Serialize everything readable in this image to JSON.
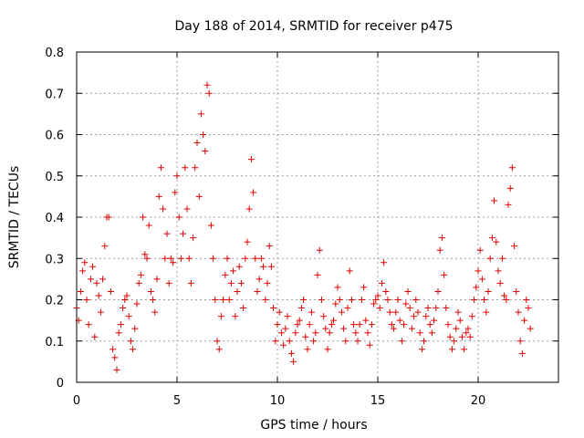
{
  "chart_data": {
    "type": "scatter",
    "title": "Day 188 of 2014, SRMTID for receiver p475",
    "xlabel": "GPS time / hours",
    "ylabel": "SRMTID / TECUs",
    "xlim": [
      0,
      24
    ],
    "ylim": [
      0,
      0.8
    ],
    "grid": true,
    "marker": "+",
    "series_color": "#e00000",
    "x_ticks": [
      0,
      5,
      10,
      15,
      20
    ],
    "x_tick_labels": [
      "0",
      "5",
      "10",
      "15",
      "20"
    ],
    "y_ticks": [
      0,
      0.1,
      0.2,
      0.3,
      0.4,
      0.5,
      0.6,
      0.7,
      0.8
    ],
    "y_tick_labels": [
      "0",
      "0.1",
      "0.2",
      "0.3",
      "0.4",
      "0.5",
      "0.6",
      "0.7",
      "0.8"
    ],
    "series": [
      {
        "name": "p475",
        "points": [
          [
            0.0,
            0.18
          ],
          [
            0.1,
            0.15
          ],
          [
            0.2,
            0.22
          ],
          [
            0.3,
            0.27
          ],
          [
            0.4,
            0.29
          ],
          [
            0.5,
            0.2
          ],
          [
            0.6,
            0.14
          ],
          [
            0.7,
            0.25
          ],
          [
            0.8,
            0.28
          ],
          [
            0.9,
            0.11
          ],
          [
            1.0,
            0.24
          ],
          [
            1.1,
            0.21
          ],
          [
            1.2,
            0.17
          ],
          [
            1.3,
            0.25
          ],
          [
            1.4,
            0.33
          ],
          [
            1.5,
            0.4
          ],
          [
            1.6,
            0.4
          ],
          [
            1.7,
            0.22
          ],
          [
            1.8,
            0.08
          ],
          [
            1.9,
            0.06
          ],
          [
            2.0,
            0.03
          ],
          [
            2.1,
            0.12
          ],
          [
            2.2,
            0.14
          ],
          [
            2.3,
            0.18
          ],
          [
            2.4,
            0.2
          ],
          [
            2.5,
            0.21
          ],
          [
            2.6,
            0.16
          ],
          [
            2.7,
            0.1
          ],
          [
            2.8,
            0.08
          ],
          [
            2.9,
            0.13
          ],
          [
            3.0,
            0.19
          ],
          [
            3.1,
            0.24
          ],
          [
            3.2,
            0.26
          ],
          [
            3.3,
            0.4
          ],
          [
            3.4,
            0.31
          ],
          [
            3.5,
            0.3
          ],
          [
            3.6,
            0.38
          ],
          [
            3.7,
            0.22
          ],
          [
            3.8,
            0.2
          ],
          [
            3.9,
            0.17
          ],
          [
            4.0,
            0.25
          ],
          [
            4.1,
            0.45
          ],
          [
            4.2,
            0.52
          ],
          [
            4.3,
            0.42
          ],
          [
            4.4,
            0.3
          ],
          [
            4.5,
            0.36
          ],
          [
            4.6,
            0.24
          ],
          [
            4.7,
            0.3
          ],
          [
            4.8,
            0.29
          ],
          [
            4.9,
            0.46
          ],
          [
            5.0,
            0.5
          ],
          [
            5.1,
            0.4
          ],
          [
            5.2,
            0.3
          ],
          [
            5.3,
            0.36
          ],
          [
            5.4,
            0.52
          ],
          [
            5.5,
            0.42
          ],
          [
            5.6,
            0.3
          ],
          [
            5.7,
            0.24
          ],
          [
            5.8,
            0.35
          ],
          [
            5.9,
            0.52
          ],
          [
            6.0,
            0.58
          ],
          [
            6.1,
            0.45
          ],
          [
            6.2,
            0.65
          ],
          [
            6.3,
            0.6
          ],
          [
            6.4,
            0.56
          ],
          [
            6.5,
            0.72
          ],
          [
            6.6,
            0.7
          ],
          [
            6.7,
            0.38
          ],
          [
            6.8,
            0.3
          ],
          [
            6.9,
            0.2
          ],
          [
            7.0,
            0.1
          ],
          [
            7.1,
            0.08
          ],
          [
            7.2,
            0.16
          ],
          [
            7.3,
            0.2
          ],
          [
            7.4,
            0.26
          ],
          [
            7.5,
            0.3
          ],
          [
            7.6,
            0.2
          ],
          [
            7.7,
            0.24
          ],
          [
            7.8,
            0.27
          ],
          [
            7.9,
            0.16
          ],
          [
            8.0,
            0.22
          ],
          [
            8.1,
            0.28
          ],
          [
            8.2,
            0.24
          ],
          [
            8.3,
            0.18
          ],
          [
            8.4,
            0.3
          ],
          [
            8.5,
            0.34
          ],
          [
            8.6,
            0.42
          ],
          [
            8.7,
            0.54
          ],
          [
            8.8,
            0.46
          ],
          [
            8.9,
            0.3
          ],
          [
            9.0,
            0.22
          ],
          [
            9.1,
            0.25
          ],
          [
            9.2,
            0.3
          ],
          [
            9.3,
            0.28
          ],
          [
            9.4,
            0.2
          ],
          [
            9.5,
            0.24
          ],
          [
            9.6,
            0.33
          ],
          [
            9.7,
            0.28
          ],
          [
            9.8,
            0.18
          ],
          [
            9.9,
            0.1
          ],
          [
            10.0,
            0.14
          ],
          [
            10.1,
            0.17
          ],
          [
            10.2,
            0.12
          ],
          [
            10.3,
            0.09
          ],
          [
            10.4,
            0.13
          ],
          [
            10.5,
            0.16
          ],
          [
            10.6,
            0.1
          ],
          [
            10.7,
            0.07
          ],
          [
            10.8,
            0.05
          ],
          [
            10.9,
            0.12
          ],
          [
            11.0,
            0.14
          ],
          [
            11.1,
            0.15
          ],
          [
            11.2,
            0.18
          ],
          [
            11.3,
            0.2
          ],
          [
            11.4,
            0.11
          ],
          [
            11.5,
            0.08
          ],
          [
            11.6,
            0.14
          ],
          [
            11.7,
            0.17
          ],
          [
            11.8,
            0.1
          ],
          [
            11.9,
            0.12
          ],
          [
            12.0,
            0.26
          ],
          [
            12.1,
            0.32
          ],
          [
            12.2,
            0.2
          ],
          [
            12.3,
            0.16
          ],
          [
            12.4,
            0.13
          ],
          [
            12.5,
            0.08
          ],
          [
            12.6,
            0.12
          ],
          [
            12.7,
            0.14
          ],
          [
            12.8,
            0.15
          ],
          [
            12.9,
            0.19
          ],
          [
            13.0,
            0.23
          ],
          [
            13.1,
            0.2
          ],
          [
            13.2,
            0.17
          ],
          [
            13.3,
            0.13
          ],
          [
            13.4,
            0.1
          ],
          [
            13.5,
            0.18
          ],
          [
            13.6,
            0.27
          ],
          [
            13.7,
            0.2
          ],
          [
            13.8,
            0.14
          ],
          [
            13.9,
            0.12
          ],
          [
            14.0,
            0.1
          ],
          [
            14.1,
            0.14
          ],
          [
            14.2,
            0.2
          ],
          [
            14.3,
            0.23
          ],
          [
            14.4,
            0.15
          ],
          [
            14.5,
            0.12
          ],
          [
            14.6,
            0.09
          ],
          [
            14.7,
            0.14
          ],
          [
            14.8,
            0.19
          ],
          [
            14.9,
            0.2
          ],
          [
            15.0,
            0.21
          ],
          [
            15.1,
            0.18
          ],
          [
            15.2,
            0.24
          ],
          [
            15.3,
            0.29
          ],
          [
            15.4,
            0.22
          ],
          [
            15.5,
            0.2
          ],
          [
            15.6,
            0.17
          ],
          [
            15.7,
            0.14
          ],
          [
            15.8,
            0.13
          ],
          [
            15.9,
            0.17
          ],
          [
            16.0,
            0.2
          ],
          [
            16.1,
            0.15
          ],
          [
            16.2,
            0.1
          ],
          [
            16.3,
            0.14
          ],
          [
            16.4,
            0.19
          ],
          [
            16.5,
            0.22
          ],
          [
            16.6,
            0.18
          ],
          [
            16.7,
            0.13
          ],
          [
            16.8,
            0.16
          ],
          [
            16.9,
            0.2
          ],
          [
            17.0,
            0.17
          ],
          [
            17.1,
            0.12
          ],
          [
            17.2,
            0.08
          ],
          [
            17.3,
            0.1
          ],
          [
            17.4,
            0.16
          ],
          [
            17.5,
            0.18
          ],
          [
            17.6,
            0.14
          ],
          [
            17.7,
            0.12
          ],
          [
            17.8,
            0.15
          ],
          [
            17.9,
            0.18
          ],
          [
            18.0,
            0.22
          ],
          [
            18.1,
            0.32
          ],
          [
            18.2,
            0.35
          ],
          [
            18.3,
            0.26
          ],
          [
            18.4,
            0.18
          ],
          [
            18.5,
            0.14
          ],
          [
            18.6,
            0.11
          ],
          [
            18.7,
            0.08
          ],
          [
            18.8,
            0.1
          ],
          [
            18.9,
            0.13
          ],
          [
            19.0,
            0.17
          ],
          [
            19.1,
            0.15
          ],
          [
            19.2,
            0.11
          ],
          [
            19.3,
            0.08
          ],
          [
            19.4,
            0.12
          ],
          [
            19.5,
            0.13
          ],
          [
            19.6,
            0.11
          ],
          [
            19.7,
            0.16
          ],
          [
            19.8,
            0.2
          ],
          [
            19.9,
            0.23
          ],
          [
            20.0,
            0.27
          ],
          [
            20.1,
            0.32
          ],
          [
            20.2,
            0.25
          ],
          [
            20.3,
            0.2
          ],
          [
            20.4,
            0.17
          ],
          [
            20.5,
            0.22
          ],
          [
            20.6,
            0.3
          ],
          [
            20.7,
            0.35
          ],
          [
            20.8,
            0.44
          ],
          [
            20.9,
            0.34
          ],
          [
            21.0,
            0.27
          ],
          [
            21.1,
            0.24
          ],
          [
            21.2,
            0.3
          ],
          [
            21.3,
            0.21
          ],
          [
            21.4,
            0.2
          ],
          [
            21.5,
            0.43
          ],
          [
            21.6,
            0.47
          ],
          [
            21.7,
            0.52
          ],
          [
            21.8,
            0.33
          ],
          [
            21.9,
            0.22
          ],
          [
            22.0,
            0.17
          ],
          [
            22.1,
            0.1
          ],
          [
            22.2,
            0.07
          ],
          [
            22.3,
            0.15
          ],
          [
            22.4,
            0.2
          ],
          [
            22.5,
            0.18
          ],
          [
            22.6,
            0.13
          ]
        ]
      }
    ]
  }
}
